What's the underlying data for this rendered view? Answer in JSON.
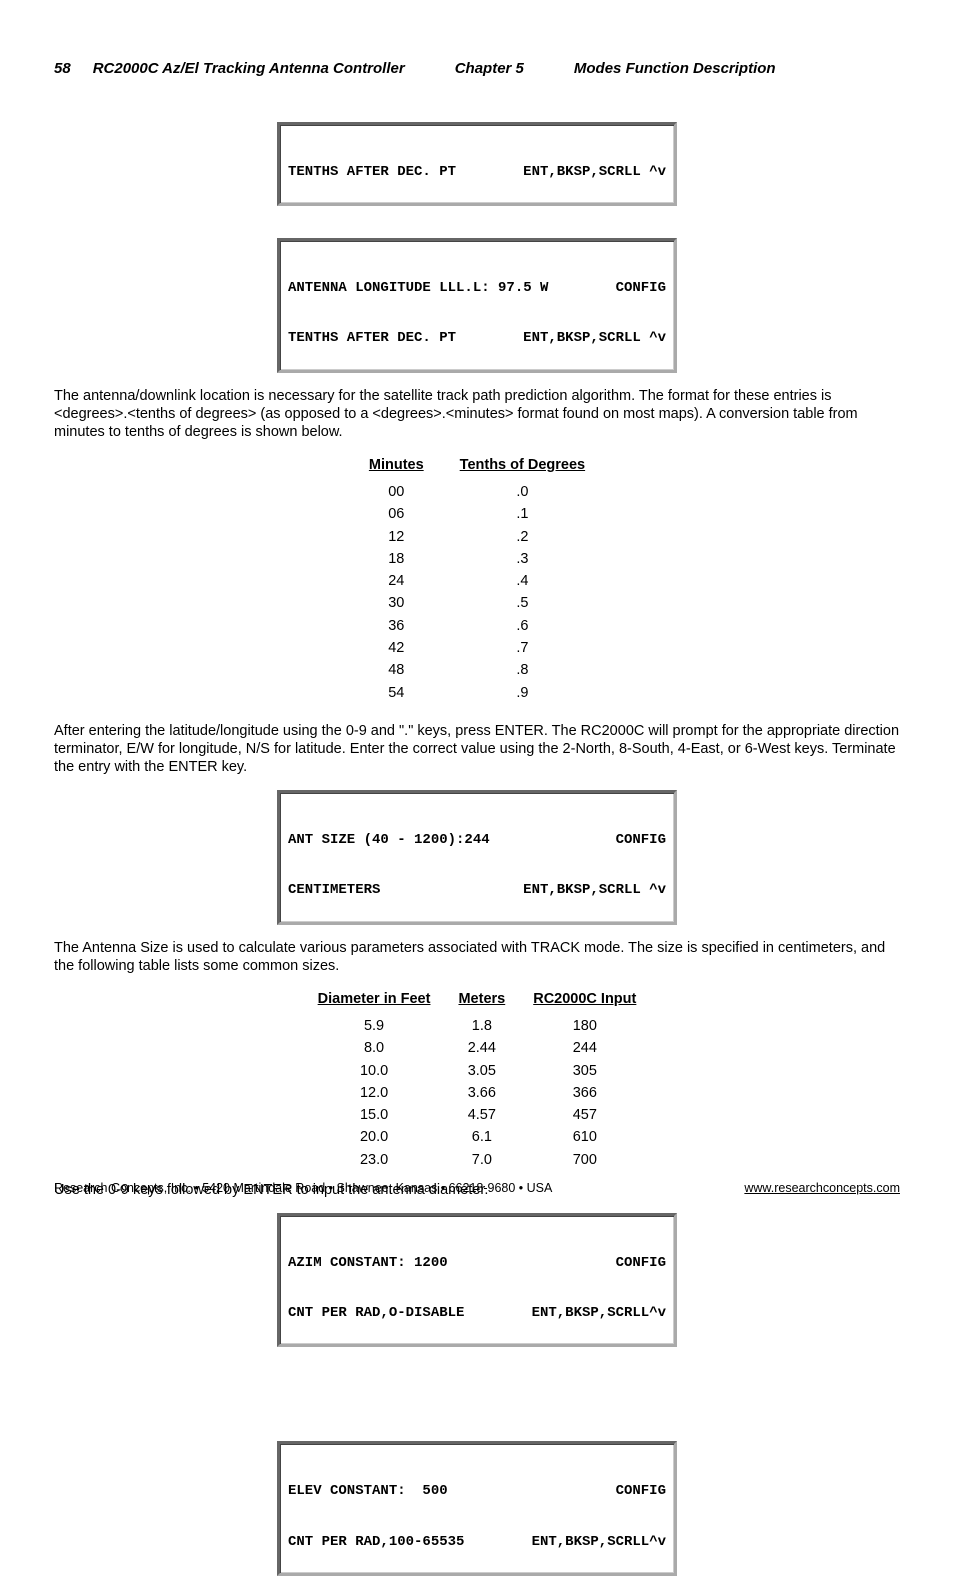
{
  "header": {
    "page_num": "58",
    "title": "RC2000C Az/El Tracking Antenna Controller",
    "chapter": "Chapter 5",
    "section": "Modes Function Description"
  },
  "lcd1": {
    "l1_left": "TENTHS AFTER DEC. PT",
    "l1_right": "ENT,BKSP,SCRLL ^v"
  },
  "lcd2": {
    "l1_left": "ANTENNA LONGITUDE LLL.L: 97.5 W",
    "l1_right": "CONFIG",
    "l2_left": "TENTHS AFTER DEC. PT",
    "l2_right": "ENT,BKSP,SCRLL ^v"
  },
  "para1": "The antenna/downlink location is necessary for the satellite track path prediction algorithm.  The format for these entries is <degrees>.<tenths of degrees> (as opposed to a <degrees>.<minutes> format found on most maps).  A conversion table from minutes to tenths of degrees is shown below.",
  "conv_table": {
    "headers": [
      "Minutes",
      "Tenths of Degrees"
    ],
    "rows": [
      [
        "00",
        ".0"
      ],
      [
        "06",
        ".1"
      ],
      [
        "12",
        ".2"
      ],
      [
        "18",
        ".3"
      ],
      [
        "24",
        ".4"
      ],
      [
        "30",
        ".5"
      ],
      [
        "36",
        ".6"
      ],
      [
        "42",
        ".7"
      ],
      [
        "48",
        ".8"
      ],
      [
        "54",
        ".9"
      ]
    ]
  },
  "para2": "After entering the latitude/longitude using the 0-9 and \".\" keys, press ENTER.  The RC2000C will prompt for the appropriate direction terminator, E/W for longitude, N/S for latitude.  Enter the correct value using the 2-North, 8-South, 4-East, or 6-West keys.  Terminate the entry with the ENTER key.",
  "lcd3": {
    "l1_left": "ANT SIZE (40 - 1200):244",
    "l1_right": "CONFIG",
    "l2_left": "CENTIMETERS",
    "l2_right": "ENT,BKSP,SCRLL ^v"
  },
  "para3": "The Antenna Size is used to calculate various parameters associated with TRACK mode.  The size is specified in centimeters, and the following table lists some common sizes.",
  "size_table": {
    "headers": [
      "Diameter in Feet",
      "Meters",
      "RC2000C Input"
    ],
    "rows": [
      [
        "5.9",
        "1.8",
        "180"
      ],
      [
        "8.0",
        "2.44",
        "244"
      ],
      [
        "10.0",
        "3.05",
        "305"
      ],
      [
        "12.0",
        "3.66",
        "366"
      ],
      [
        "15.0",
        "4.57",
        "457"
      ],
      [
        "20.0",
        "6.1",
        "610"
      ],
      [
        "23.0",
        "7.0",
        "700"
      ]
    ]
  },
  "para4": "Use the 0-9 keys followed by ENTER to input the antenna diameter.",
  "lcd4": {
    "l1_left": "AZIM CONSTANT: 1200",
    "l1_right": "CONFIG",
    "l2_left": "CNT PER RAD,O-DISABLE",
    "l2_right": "ENT,BKSP,SCRLL^v"
  },
  "lcd5": {
    "l1_left": "ELEV CONSTANT:  500",
    "l1_right": "CONFIG",
    "l2_left": "CNT PER RAD,100-65535",
    "l2_right": "ENT,BKSP,SCRLL^v"
  },
  "footer": {
    "left": "Research Concepts, Inc. • 5420 Martindale Road • Shawnee, Kansas • 66218-9680 • USA",
    "right": "www.researchconcepts.com"
  }
}
